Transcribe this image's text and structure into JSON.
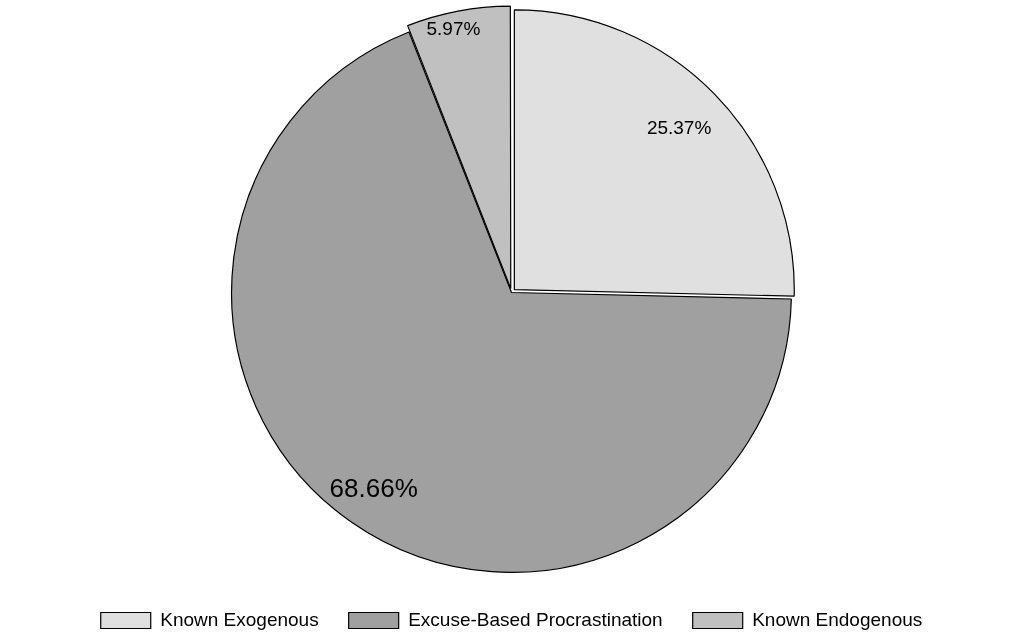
{
  "chart_data": {
    "type": "pie",
    "categories": [
      "Known Exogenous",
      "Excuse-Based Procrastination",
      "Known Endogenous"
    ],
    "values": [
      25.37,
      68.66,
      5.97
    ],
    "colors": [
      "#e0e0e0",
      "#a0a0a0",
      "#c0c0c0"
    ],
    "value_labels": [
      "25.37%",
      "68.66%",
      "5.97%"
    ],
    "legend": "bottom"
  }
}
